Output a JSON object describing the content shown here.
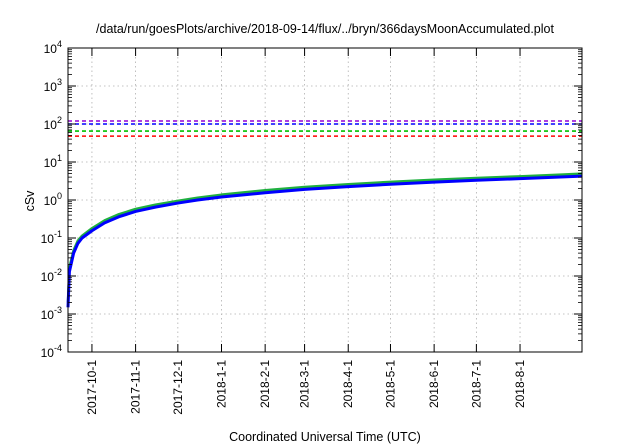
{
  "chart_data": {
    "type": "line",
    "title": "/data/run/goesPlots/archive/2018-09-14/flux/../bryn/366daysMoonAccumulated.plot",
    "xlabel": "Coordinated Universal Time (UTC)",
    "ylabel": "cSv",
    "yscale": "log",
    "ylim": [
      0.0001,
      10000
    ],
    "xlim": [
      "2017-09-14",
      "2018-09-14"
    ],
    "grid": true,
    "legend": "none",
    "x_ticks": [
      {
        "date": "2017-10-01",
        "label": "2017-10-1"
      },
      {
        "date": "2017-11-01",
        "label": "2017-11-1"
      },
      {
        "date": "2017-12-01",
        "label": "2017-12-1"
      },
      {
        "date": "2018-01-01",
        "label": "2018-1-1"
      },
      {
        "date": "2018-02-01",
        "label": "2018-2-1"
      },
      {
        "date": "2018-03-01",
        "label": "2018-3-1"
      },
      {
        "date": "2018-04-01",
        "label": "2018-4-1"
      },
      {
        "date": "2018-05-01",
        "label": "2018-5-1"
      },
      {
        "date": "2018-06-01",
        "label": "2018-6-1"
      },
      {
        "date": "2018-07-01",
        "label": "2018-7-1"
      },
      {
        "date": "2018-08-01",
        "label": "2018-8-1"
      }
    ],
    "y_ticks": [
      {
        "value": 0.0001,
        "base": "10",
        "exp": "-4"
      },
      {
        "value": 0.001,
        "base": "10",
        "exp": "-3"
      },
      {
        "value": 0.01,
        "base": "10",
        "exp": "-2"
      },
      {
        "value": 0.1,
        "base": "10",
        "exp": "-1"
      },
      {
        "value": 1,
        "base": "10",
        "exp": "0"
      },
      {
        "value": 10,
        "base": "10",
        "exp": "1"
      },
      {
        "value": 100,
        "base": "10",
        "exp": "2"
      },
      {
        "value": 1000,
        "base": "10",
        "exp": "3"
      },
      {
        "value": 10000,
        "base": "10",
        "exp": "4"
      }
    ],
    "thresholds": [
      {
        "value": 120,
        "color": "#9400d3",
        "style": "dashed"
      },
      {
        "value": 100,
        "color": "#0000ff",
        "style": "dashed"
      },
      {
        "value": 65,
        "color": "#00c000",
        "style": "dashed"
      },
      {
        "value": 48,
        "color": "#ff0000",
        "style": "dashed"
      }
    ],
    "series": [
      {
        "color": "#20b040",
        "width": 2.5,
        "x": [
          "2017-09-14",
          "2017-09-15",
          "2017-09-18",
          "2017-09-21",
          "2017-09-24",
          "2017-10-01",
          "2017-10-10",
          "2017-10-20",
          "2017-11-01",
          "2017-11-15",
          "2017-12-01",
          "2017-12-15",
          "2018-01-01",
          "2018-02-01",
          "2018-03-01",
          "2018-04-01",
          "2018-05-01",
          "2018-06-01",
          "2018-07-01",
          "2018-08-01",
          "2018-09-01",
          "2018-09-14"
        ],
        "values": [
          0.002,
          0.017,
          0.048,
          0.085,
          0.115,
          0.18,
          0.29,
          0.42,
          0.58,
          0.75,
          0.95,
          1.15,
          1.38,
          1.8,
          2.2,
          2.6,
          3.0,
          3.4,
          3.8,
          4.2,
          4.7,
          4.95
        ]
      },
      {
        "color": "#0000ff",
        "width": 3,
        "x": [
          "2017-09-14",
          "2017-09-15",
          "2017-09-18",
          "2017-09-21",
          "2017-09-24",
          "2017-10-01",
          "2017-10-10",
          "2017-10-20",
          "2017-11-01",
          "2017-11-15",
          "2017-12-01",
          "2017-12-15",
          "2018-01-01",
          "2018-02-01",
          "2018-03-01",
          "2018-04-01",
          "2018-05-01",
          "2018-06-01",
          "2018-07-01",
          "2018-08-01",
          "2018-09-01",
          "2018-09-14"
        ],
        "values": [
          0.0015,
          0.013,
          0.04,
          0.072,
          0.1,
          0.155,
          0.25,
          0.36,
          0.5,
          0.65,
          0.83,
          1.0,
          1.2,
          1.55,
          1.9,
          2.25,
          2.6,
          2.95,
          3.3,
          3.65,
          4.05,
          4.25
        ]
      }
    ]
  }
}
